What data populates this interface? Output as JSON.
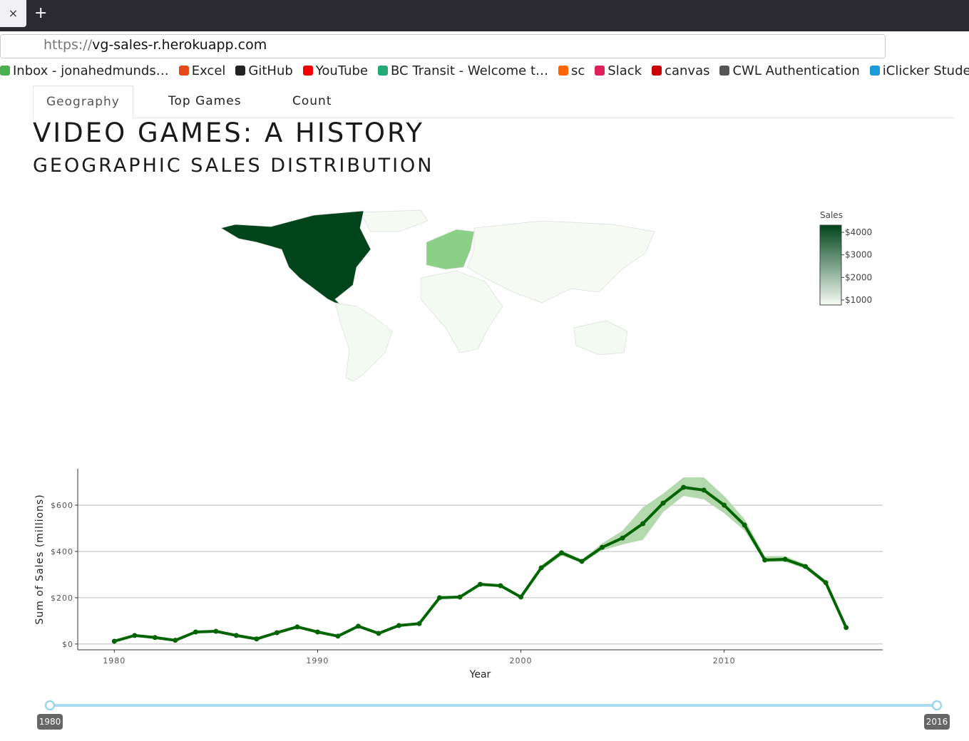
{
  "browser": {
    "close": "×",
    "new_tab": "+",
    "url_scheme": "https://",
    "url_host": "vg-sales-r.herokuapp.com",
    "bookmarks": [
      "Inbox - jonahedmunds…",
      "Excel",
      "GitHub",
      "YouTube",
      "BC Transit - Welcome t…",
      "sc",
      "Slack",
      "canvas",
      "CWL Authentication",
      "iClicker Student"
    ]
  },
  "tabs": [
    "Geography",
    "Top Games",
    "Count"
  ],
  "header": {
    "title": "VIDEO GAMES: A HISTORY",
    "subtitle": "GEOGRAPHIC SALES DISTRIBUTION"
  },
  "map": {
    "colorbar": {
      "title": "Sales",
      "lim": [
        779,
        4316
      ],
      "colors": [
        "#f7fcf5",
        "#00441b"
      ],
      "ticks": [
        {
          "value": 1000,
          "label": "$1000"
        },
        {
          "value": 2000,
          "label": "$2000"
        },
        {
          "value": 3000,
          "label": "$3000"
        },
        {
          "value": 4000,
          "label": "$4000"
        }
      ]
    }
  },
  "chart_data": {
    "type": "line",
    "x_label": "Year",
    "y_label": "Sum of Sales (millions)",
    "x": [
      1980,
      1981,
      1982,
      1983,
      1984,
      1985,
      1986,
      1987,
      1988,
      1989,
      1990,
      1991,
      1992,
      1993,
      1994,
      1995,
      1996,
      1997,
      1998,
      1999,
      2000,
      2001,
      2002,
      2003,
      2004,
      2005,
      2006,
      2007,
      2008,
      2009,
      2010,
      2011,
      2012,
      2013,
      2014,
      2015,
      2016
    ],
    "series": [
      {
        "color": "#006400",
        "band_color": "#b5d9ae",
        "values": [
          12,
          37,
          28,
          16,
          52,
          55,
          37,
          22,
          49,
          74,
          52,
          34,
          77,
          46,
          80,
          88,
          200,
          203,
          258,
          252,
          203,
          329,
          394,
          357,
          418,
          458,
          520,
          609,
          677,
          665,
          600,
          514,
          363,
          366,
          335,
          265,
          71
        ],
        "upper": [
          15,
          40,
          31,
          19,
          55,
          58,
          40,
          25,
          52,
          77,
          55,
          37,
          80,
          49,
          83,
          92,
          205,
          208,
          263,
          257,
          208,
          340,
          405,
          365,
          435,
          490,
          590,
          650,
          720,
          720,
          640,
          540,
          380,
          380,
          345,
          275,
          75
        ],
        "lower": [
          9,
          34,
          25,
          13,
          49,
          52,
          34,
          19,
          46,
          71,
          49,
          31,
          74,
          43,
          77,
          84,
          195,
          198,
          253,
          247,
          198,
          318,
          382,
          350,
          405,
          430,
          450,
          570,
          640,
          625,
          565,
          490,
          355,
          355,
          325,
          255,
          67
        ]
      }
    ],
    "xlim": [
      1978.2,
      2017.8
    ],
    "xticks": [
      1980,
      1990,
      2000,
      2010
    ],
    "ylim": [
      -25,
      757
    ],
    "yticks": [
      {
        "value": 0,
        "label": "$0"
      },
      {
        "value": 200,
        "label": "$200"
      },
      {
        "value": 400,
        "label": "$400"
      },
      {
        "value": 600,
        "label": "$600"
      }
    ],
    "grid": true
  },
  "slider": {
    "min": 1980,
    "max": 2016,
    "from": 1980,
    "to": 2016
  }
}
